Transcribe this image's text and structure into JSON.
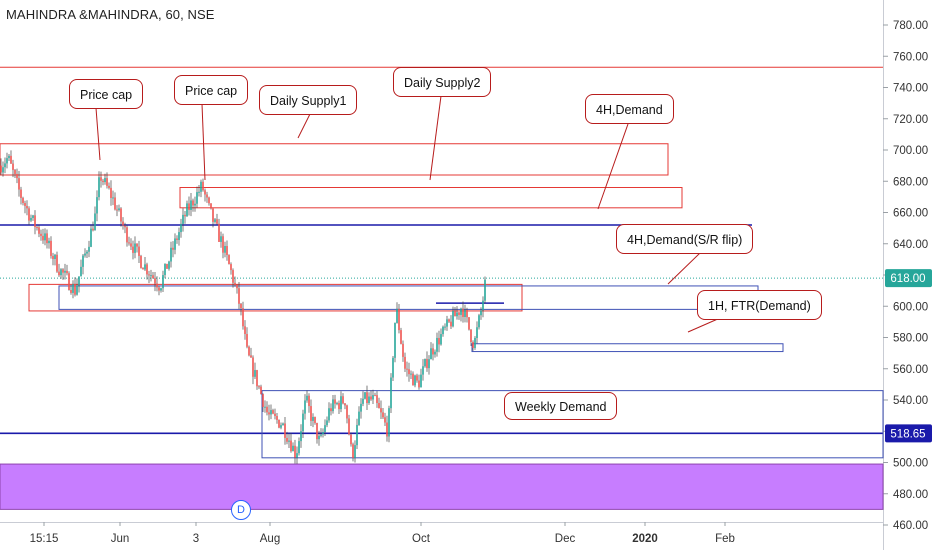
{
  "window": {
    "title": "MAHINDRA &MAHINDRA, 60, NSE"
  },
  "chart_data": {
    "type": "candlestick",
    "title": "MAHINDRA &MAHINDRA, 60, NSE",
    "y_axis": {
      "position": "right",
      "range": [
        448,
        790
      ],
      "tick_labels": [
        "780.00",
        "760.00",
        "740.00",
        "720.00",
        "700.00",
        "680.00",
        "660.00",
        "640.00",
        "620.00",
        "600.00",
        "580.00",
        "560.00",
        "540.00",
        "520.00",
        "500.00",
        "480.00",
        "460.00"
      ]
    },
    "x_axis": {
      "tick_labels": [
        "15:15",
        "Jun",
        "3",
        "Aug",
        "Oct",
        "Dec",
        "2020",
        "Feb"
      ],
      "bold_labels": [
        "2020"
      ]
    },
    "price_badges": [
      {
        "label": "618.00",
        "value": 618,
        "color": "#26a69a"
      },
      {
        "label": "518.65",
        "value": 518.65,
        "color": "#1a1aaa"
      }
    ],
    "price_path": [
      {
        "x": "start",
        "y": 690
      },
      {
        "x": "",
        "y": 695
      },
      {
        "x": "",
        "y": 672
      },
      {
        "x": "",
        "y": 655
      },
      {
        "x": "",
        "y": 643
      },
      {
        "x": "",
        "y": 625
      },
      {
        "x": "",
        "y": 610
      },
      {
        "x": "",
        "y": 640
      },
      {
        "x": "",
        "y": 660
      },
      {
        "x": "",
        "y": 684
      },
      {
        "x": "",
        "y": 670
      },
      {
        "x": "",
        "y": 648
      },
      {
        "x": "",
        "y": 630
      },
      {
        "x": "",
        "y": 613
      },
      {
        "x": "",
        "y": 635
      },
      {
        "x": "",
        "y": 660
      },
      {
        "x": "",
        "y": 677
      },
      {
        "x": "",
        "y": 660
      },
      {
        "x": "",
        "y": 640
      },
      {
        "x": "",
        "y": 620
      },
      {
        "x": "",
        "y": 600
      },
      {
        "x": "",
        "y": 570
      },
      {
        "x": "",
        "y": 550
      },
      {
        "x": "",
        "y": 530
      },
      {
        "x": "",
        "y": 525
      },
      {
        "x": "",
        "y": 505
      },
      {
        "x": "",
        "y": 540
      },
      {
        "x": "",
        "y": 512
      },
      {
        "x": "",
        "y": 535
      },
      {
        "x": "",
        "y": 540
      },
      {
        "x": "",
        "y": 503
      },
      {
        "x": "",
        "y": 540
      },
      {
        "x": "",
        "y": 540
      },
      {
        "x": "",
        "y": 520
      },
      {
        "x": "",
        "y": 600
      },
      {
        "x": "",
        "y": 560
      },
      {
        "x": "",
        "y": 550
      },
      {
        "x": "",
        "y": 570
      },
      {
        "x": "",
        "y": 585
      },
      {
        "x": "",
        "y": 600
      },
      {
        "x": "",
        "y": 575
      },
      {
        "x": "",
        "y": 600
      },
      {
        "x": "",
        "y": 618
      }
    ],
    "horizontal_lines": [
      {
        "name": "red-line-753",
        "value": 753,
        "color": "#e53935"
      },
      {
        "name": "blue-line-652",
        "value": 652,
        "color": "#1a1aaa"
      },
      {
        "name": "blue-line-518",
        "value": 518.65,
        "color": "#1a1aaa"
      },
      {
        "name": "dotted-line-618",
        "value": 618,
        "color": "#26a69a"
      }
    ],
    "zones": [
      {
        "name": "daily-supply-1-zone",
        "low": 684,
        "high": 704,
        "color": "#e53935"
      },
      {
        "name": "daily-supply-2-zone",
        "low": 663,
        "high": 676,
        "color": "#e53935"
      },
      {
        "name": "price-cap-zone",
        "low": 597,
        "high": 614,
        "color": "#e53935"
      },
      {
        "name": "4h-demand-sr-flip-zone",
        "low": 598,
        "high": 613,
        "color": "#3f51b5"
      },
      {
        "name": "1h-ftr-demand-zone",
        "low": 571,
        "high": 576,
        "color": "#3f51b5"
      },
      {
        "name": "weekly-demand-zone",
        "low": 503,
        "high": 546,
        "color": "#3f51b5"
      },
      {
        "name": "purple-demand-band",
        "low": 470,
        "high": 499,
        "color": "#c77dff"
      }
    ],
    "annotations": [
      {
        "name": "price-cap-1-callout",
        "label": "Price cap"
      },
      {
        "name": "price-cap-2-callout",
        "label": "Price cap"
      },
      {
        "name": "daily-supply1-callout",
        "label": "Daily Supply1"
      },
      {
        "name": "daily-supply2-callout",
        "label": "Daily Supply2"
      },
      {
        "name": "4h-demand-callout",
        "label": "4H,Demand"
      },
      {
        "name": "4h-demand-sr-flip-callout",
        "label": "4H,Demand(S/R flip)"
      },
      {
        "name": "1h-ftr-demand-callout",
        "label": "1H, FTR(Demand)"
      },
      {
        "name": "weekly-demand-callout",
        "label": "Weekly Demand"
      }
    ],
    "dividend_marker": "D",
    "grid": true
  }
}
